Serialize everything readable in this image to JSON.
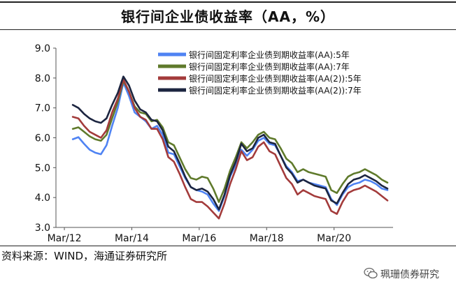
{
  "title": "银行间企业债收益率（AA，%）",
  "source": "资料来源：WIND，海通证券研究所",
  "watermark": "珮珊债券研究",
  "chart_data": {
    "type": "line",
    "ylim": [
      3.0,
      9.0
    ],
    "yticks": [
      "3.0",
      "4.0",
      "5.0",
      "6.0",
      "7.0",
      "8.0",
      "9.0"
    ],
    "xticks": [
      "Mar/12",
      "Mar/14",
      "Mar/16",
      "Mar/18",
      "Mar/20"
    ],
    "xlim": [
      "2011-12",
      "2021-12"
    ],
    "legend_position": "top-right",
    "series": [
      {
        "name": "银行间固定利率企业债到期收益率(AA):5年",
        "color": "#4f83f3",
        "points": [
          [
            "2012-06",
            5.95
          ],
          [
            "2012-08",
            6.02
          ],
          [
            "2012-10",
            5.8
          ],
          [
            "2012-12",
            5.6
          ],
          [
            "2013-02",
            5.5
          ],
          [
            "2013-04",
            5.45
          ],
          [
            "2013-06",
            5.75
          ],
          [
            "2013-08",
            6.4
          ],
          [
            "2013-10",
            7.0
          ],
          [
            "2013-12",
            7.85
          ],
          [
            "2014-02",
            7.4
          ],
          [
            "2014-04",
            6.85
          ],
          [
            "2014-06",
            6.7
          ],
          [
            "2014-08",
            6.55
          ],
          [
            "2014-10",
            6.3
          ],
          [
            "2014-12",
            6.4
          ],
          [
            "2015-02",
            6.1
          ],
          [
            "2015-04",
            5.5
          ],
          [
            "2015-06",
            5.45
          ],
          [
            "2015-08",
            5.05
          ],
          [
            "2015-10",
            4.65
          ],
          [
            "2015-12",
            4.35
          ],
          [
            "2016-02",
            4.25
          ],
          [
            "2016-04",
            4.2
          ],
          [
            "2016-06",
            4.1
          ],
          [
            "2016-08",
            3.8
          ],
          [
            "2016-10",
            3.55
          ],
          [
            "2016-12",
            4.05
          ],
          [
            "2017-02",
            4.7
          ],
          [
            "2017-04",
            5.1
          ],
          [
            "2017-06",
            5.6
          ],
          [
            "2017-08",
            5.4
          ],
          [
            "2017-10",
            5.6
          ],
          [
            "2017-12",
            5.9
          ],
          [
            "2018-02",
            6.0
          ],
          [
            "2018-04",
            5.8
          ],
          [
            "2018-06",
            5.75
          ],
          [
            "2018-08",
            5.4
          ],
          [
            "2018-10",
            5.05
          ],
          [
            "2018-12",
            4.85
          ],
          [
            "2019-02",
            4.55
          ],
          [
            "2019-04",
            4.6
          ],
          [
            "2019-06",
            4.5
          ],
          [
            "2019-08",
            4.45
          ],
          [
            "2019-10",
            4.4
          ],
          [
            "2019-12",
            4.35
          ],
          [
            "2020-02",
            3.95
          ],
          [
            "2020-04",
            3.75
          ],
          [
            "2020-06",
            4.1
          ],
          [
            "2020-08",
            4.35
          ],
          [
            "2020-10",
            4.45
          ],
          [
            "2020-12",
            4.5
          ],
          [
            "2021-02",
            4.6
          ],
          [
            "2021-04",
            4.55
          ],
          [
            "2021-06",
            4.45
          ],
          [
            "2021-08",
            4.3
          ],
          [
            "2021-10",
            4.25
          ]
        ]
      },
      {
        "name": "银行间固定利率企业债到期收益率(AA):7年",
        "color": "#5f7a2b",
        "points": [
          [
            "2012-06",
            6.3
          ],
          [
            "2012-08",
            6.35
          ],
          [
            "2012-10",
            6.2
          ],
          [
            "2012-12",
            6.05
          ],
          [
            "2013-02",
            5.95
          ],
          [
            "2013-04",
            5.9
          ],
          [
            "2013-06",
            6.1
          ],
          [
            "2013-08",
            6.65
          ],
          [
            "2013-10",
            7.2
          ],
          [
            "2013-12",
            7.9
          ],
          [
            "2014-02",
            7.55
          ],
          [
            "2014-04",
            7.05
          ],
          [
            "2014-06",
            6.85
          ],
          [
            "2014-08",
            6.8
          ],
          [
            "2014-10",
            6.55
          ],
          [
            "2014-12",
            6.6
          ],
          [
            "2015-02",
            6.35
          ],
          [
            "2015-04",
            5.85
          ],
          [
            "2015-06",
            5.75
          ],
          [
            "2015-08",
            5.35
          ],
          [
            "2015-10",
            4.95
          ],
          [
            "2015-12",
            4.65
          ],
          [
            "2016-02",
            4.6
          ],
          [
            "2016-04",
            4.7
          ],
          [
            "2016-06",
            4.65
          ],
          [
            "2016-08",
            4.3
          ],
          [
            "2016-10",
            3.85
          ],
          [
            "2016-12",
            4.3
          ],
          [
            "2017-02",
            4.9
          ],
          [
            "2017-04",
            5.35
          ],
          [
            "2017-06",
            5.85
          ],
          [
            "2017-08",
            5.65
          ],
          [
            "2017-10",
            5.85
          ],
          [
            "2017-12",
            6.1
          ],
          [
            "2018-02",
            6.2
          ],
          [
            "2018-04",
            6.0
          ],
          [
            "2018-06",
            5.95
          ],
          [
            "2018-08",
            5.65
          ],
          [
            "2018-10",
            5.3
          ],
          [
            "2018-12",
            5.15
          ],
          [
            "2019-02",
            4.85
          ],
          [
            "2019-04",
            4.95
          ],
          [
            "2019-06",
            4.85
          ],
          [
            "2019-08",
            4.8
          ],
          [
            "2019-10",
            4.75
          ],
          [
            "2019-12",
            4.7
          ],
          [
            "2020-02",
            4.25
          ],
          [
            "2020-04",
            4.15
          ],
          [
            "2020-06",
            4.45
          ],
          [
            "2020-08",
            4.7
          ],
          [
            "2020-10",
            4.8
          ],
          [
            "2020-12",
            4.85
          ],
          [
            "2021-02",
            4.95
          ],
          [
            "2021-04",
            4.85
          ],
          [
            "2021-06",
            4.75
          ],
          [
            "2021-08",
            4.6
          ],
          [
            "2021-10",
            4.5
          ]
        ]
      },
      {
        "name": "银行间固定利率企业债到期收益率(AA(2)):5年",
        "color": "#a33b3b",
        "points": [
          [
            "2012-06",
            6.7
          ],
          [
            "2012-08",
            6.65
          ],
          [
            "2012-10",
            6.4
          ],
          [
            "2012-12",
            6.2
          ],
          [
            "2013-02",
            6.1
          ],
          [
            "2013-04",
            6.0
          ],
          [
            "2013-06",
            6.25
          ],
          [
            "2013-08",
            6.85
          ],
          [
            "2013-10",
            7.3
          ],
          [
            "2013-12",
            7.95
          ],
          [
            "2014-02",
            7.55
          ],
          [
            "2014-04",
            7.0
          ],
          [
            "2014-06",
            6.7
          ],
          [
            "2014-08",
            6.6
          ],
          [
            "2014-10",
            6.3
          ],
          [
            "2014-12",
            6.3
          ],
          [
            "2015-02",
            5.95
          ],
          [
            "2015-04",
            5.35
          ],
          [
            "2015-06",
            5.2
          ],
          [
            "2015-08",
            4.8
          ],
          [
            "2015-10",
            4.35
          ],
          [
            "2015-12",
            3.95
          ],
          [
            "2016-02",
            3.85
          ],
          [
            "2016-04",
            3.85
          ],
          [
            "2016-06",
            3.7
          ],
          [
            "2016-08",
            3.5
          ],
          [
            "2016-10",
            3.3
          ],
          [
            "2016-12",
            3.8
          ],
          [
            "2017-02",
            4.45
          ],
          [
            "2017-04",
            4.95
          ],
          [
            "2017-06",
            5.55
          ],
          [
            "2017-08",
            5.25
          ],
          [
            "2017-10",
            5.35
          ],
          [
            "2017-12",
            5.7
          ],
          [
            "2018-02",
            5.85
          ],
          [
            "2018-04",
            5.55
          ],
          [
            "2018-06",
            5.45
          ],
          [
            "2018-08",
            5.05
          ],
          [
            "2018-10",
            4.65
          ],
          [
            "2018-12",
            4.45
          ],
          [
            "2019-02",
            4.1
          ],
          [
            "2019-04",
            4.25
          ],
          [
            "2019-06",
            4.15
          ],
          [
            "2019-08",
            4.05
          ],
          [
            "2019-10",
            4.0
          ],
          [
            "2019-12",
            3.95
          ],
          [
            "2020-02",
            3.55
          ],
          [
            "2020-04",
            3.45
          ],
          [
            "2020-06",
            3.85
          ],
          [
            "2020-08",
            4.15
          ],
          [
            "2020-10",
            4.25
          ],
          [
            "2020-12",
            4.3
          ],
          [
            "2021-02",
            4.4
          ],
          [
            "2021-04",
            4.3
          ],
          [
            "2021-06",
            4.2
          ],
          [
            "2021-08",
            4.05
          ],
          [
            "2021-10",
            3.9
          ]
        ]
      },
      {
        "name": "银行间固定利率企业债到期收益率(AA(2)):7年",
        "color": "#1c2540",
        "points": [
          [
            "2012-06",
            7.1
          ],
          [
            "2012-08",
            7.0
          ],
          [
            "2012-10",
            6.8
          ],
          [
            "2012-12",
            6.65
          ],
          [
            "2013-02",
            6.55
          ],
          [
            "2013-04",
            6.5
          ],
          [
            "2013-06",
            6.65
          ],
          [
            "2013-08",
            7.1
          ],
          [
            "2013-10",
            7.5
          ],
          [
            "2013-12",
            8.05
          ],
          [
            "2014-02",
            7.75
          ],
          [
            "2014-04",
            7.25
          ],
          [
            "2014-06",
            6.95
          ],
          [
            "2014-08",
            6.85
          ],
          [
            "2014-10",
            6.6
          ],
          [
            "2014-12",
            6.55
          ],
          [
            "2015-02",
            6.25
          ],
          [
            "2015-04",
            5.7
          ],
          [
            "2015-06",
            5.55
          ],
          [
            "2015-08",
            5.15
          ],
          [
            "2015-10",
            4.7
          ],
          [
            "2015-12",
            4.35
          ],
          [
            "2016-02",
            4.25
          ],
          [
            "2016-04",
            4.3
          ],
          [
            "2016-06",
            4.2
          ],
          [
            "2016-08",
            3.95
          ],
          [
            "2016-10",
            3.6
          ],
          [
            "2016-12",
            4.1
          ],
          [
            "2017-02",
            4.75
          ],
          [
            "2017-04",
            5.2
          ],
          [
            "2017-06",
            5.8
          ],
          [
            "2017-08",
            5.55
          ],
          [
            "2017-10",
            5.65
          ],
          [
            "2017-12",
            6.0
          ],
          [
            "2018-02",
            6.1
          ],
          [
            "2018-04",
            5.85
          ],
          [
            "2018-06",
            5.8
          ],
          [
            "2018-08",
            5.4
          ],
          [
            "2018-10",
            5.0
          ],
          [
            "2018-12",
            4.8
          ],
          [
            "2019-02",
            4.5
          ],
          [
            "2019-04",
            4.6
          ],
          [
            "2019-06",
            4.5
          ],
          [
            "2019-08",
            4.4
          ],
          [
            "2019-10",
            4.35
          ],
          [
            "2019-12",
            4.3
          ],
          [
            "2020-02",
            3.9
          ],
          [
            "2020-04",
            3.8
          ],
          [
            "2020-06",
            4.15
          ],
          [
            "2020-08",
            4.45
          ],
          [
            "2020-10",
            4.6
          ],
          [
            "2020-12",
            4.65
          ],
          [
            "2021-02",
            4.75
          ],
          [
            "2021-04",
            4.65
          ],
          [
            "2021-06",
            4.55
          ],
          [
            "2021-08",
            4.4
          ],
          [
            "2021-10",
            4.3
          ]
        ]
      }
    ]
  }
}
